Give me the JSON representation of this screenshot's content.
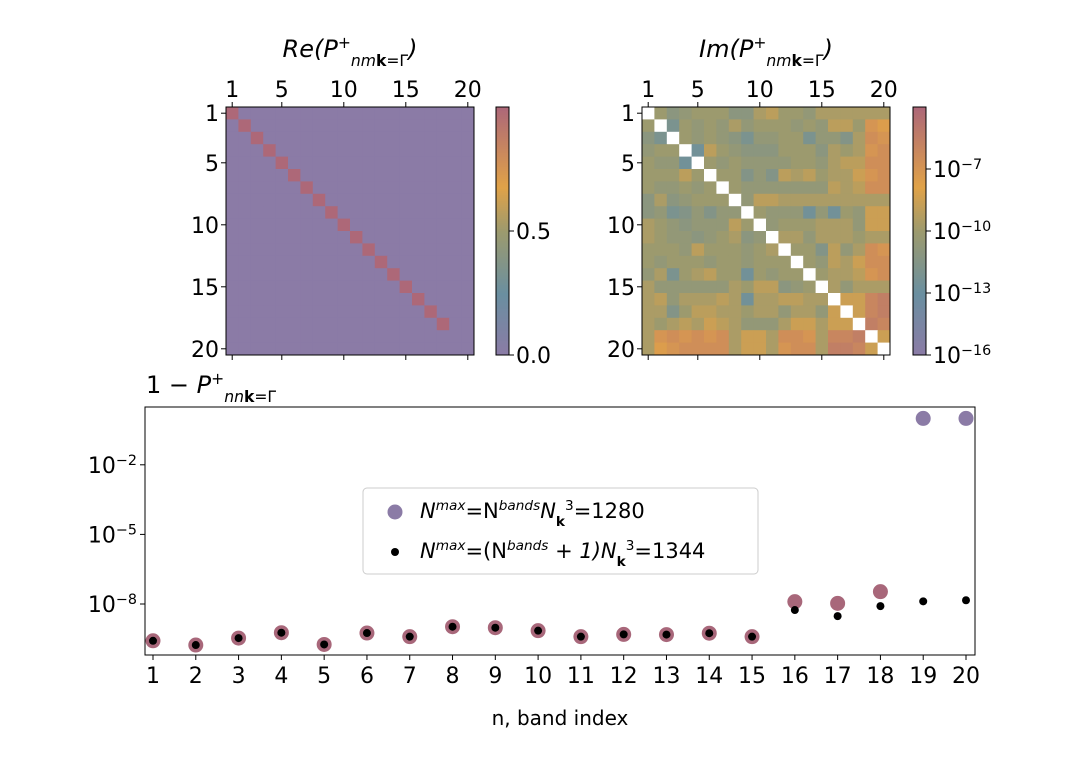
{
  "colormap": [
    "#8b7ba6",
    "#6a8fa0",
    "#9c9a6e",
    "#e0a248",
    "#ad6878"
  ],
  "chart_data": [
    {
      "type": "heatmap",
      "title": {
        "prefix": "Re(",
        "sym": "P",
        "sup": "+",
        "sub": "nm",
        "subk": "k",
        "subrest": "=Γ",
        "suffix": ")"
      },
      "x_ticks": [
        "1",
        "5",
        "10",
        "15",
        "20"
      ],
      "y_ticks": [
        "1",
        "5",
        "10",
        "15",
        "20"
      ],
      "x_axis_position": "top",
      "size": 20,
      "diagonal": [
        1,
        1,
        1,
        1,
        1,
        1,
        1,
        1,
        1,
        1,
        1,
        1,
        1,
        1,
        1,
        1,
        1,
        1,
        0,
        0
      ],
      "off_diagonal": 0,
      "colorbar": {
        "range": [
          0,
          1
        ],
        "scale": "linear",
        "ticks": [
          "0.0",
          "0.5"
        ],
        "tick_values": [
          0,
          0.5
        ]
      }
    },
    {
      "type": "heatmap",
      "title": {
        "prefix": "Im(",
        "sym": "P",
        "sup": "+",
        "sub": "nm",
        "subk": "k",
        "subrest": "=Γ",
        "suffix": ")"
      },
      "x_ticks": [
        "1",
        "5",
        "10",
        "15",
        "20"
      ],
      "y_ticks": [
        "1",
        "5",
        "10",
        "15",
        "20"
      ],
      "x_axis_position": "top",
      "diagonal_color": "#ffffff",
      "colorbar": {
        "range": [
          1e-16,
          0.0001
        ],
        "scale": "log",
        "ticks": [
          {
            "base": "10",
            "exp": "−7"
          },
          {
            "base": "10",
            "exp": "−10"
          },
          {
            "base": "10",
            "exp": "−13"
          },
          {
            "base": "10",
            "exp": "−16"
          }
        ],
        "tick_values": [
          1e-07,
          1e-10,
          1e-13,
          1e-16
        ]
      },
      "values": [
        [
          null,
          1e-10,
          1e-11,
          3e-11,
          1e-10,
          1e-10,
          1e-10,
          1e-11,
          1e-11,
          3e-10,
          1e-09,
          1e-10,
          1e-10,
          3e-11,
          3e-10,
          3e-10,
          3e-10,
          3e-10,
          3e-10,
          3e-10
        ],
        [
          1e-10,
          null,
          1e-12,
          1e-10,
          3e-11,
          1e-10,
          3e-11,
          3e-10,
          3e-11,
          1e-10,
          1e-10,
          1e-10,
          3e-11,
          1e-10,
          3e-11,
          1e-09,
          1e-09,
          1e-10,
          1e-07,
          3e-08
        ],
        [
          1e-11,
          1e-12,
          null,
          1e-10,
          3e-11,
          1e-10,
          3e-11,
          1e-11,
          1e-12,
          3e-11,
          3e-11,
          1e-10,
          1e-10,
          1e-12,
          3e-11,
          3e-11,
          3e-12,
          3e-10,
          3e-07,
          1e-07
        ],
        [
          3e-11,
          1e-10,
          1e-10,
          null,
          3e-13,
          1e-09,
          1e-10,
          3e-11,
          1e-11,
          1e-11,
          1e-11,
          1e-10,
          1e-10,
          1e-10,
          1e-11,
          3e-10,
          1e-10,
          3e-10,
          1e-07,
          3e-07
        ],
        [
          1e-10,
          3e-11,
          3e-11,
          3e-13,
          null,
          1e-10,
          3e-11,
          1e-10,
          3e-11,
          3e-11,
          3e-11,
          3e-11,
          1e-10,
          1e-10,
          3e-11,
          3e-10,
          1e-09,
          1e-09,
          3e-07,
          3e-07
        ],
        [
          1e-10,
          1e-10,
          1e-10,
          1e-09,
          1e-10,
          null,
          1e-10,
          1e-10,
          3e-12,
          3e-11,
          3e-12,
          1e-09,
          3e-10,
          1e-09,
          1e-10,
          3e-10,
          3e-10,
          3e-09,
          1e-07,
          3e-07
        ],
        [
          1e-10,
          3e-11,
          3e-11,
          1e-10,
          3e-11,
          1e-10,
          null,
          1e-10,
          3e-11,
          3e-11,
          3e-11,
          3e-11,
          3e-11,
          3e-11,
          3e-11,
          1e-09,
          3e-10,
          1e-09,
          3e-07,
          3e-07
        ],
        [
          1e-11,
          3e-10,
          1e-11,
          3e-11,
          1e-10,
          1e-10,
          1e-10,
          null,
          3e-11,
          1e-09,
          1e-09,
          3e-10,
          3e-10,
          3e-10,
          3e-10,
          3e-10,
          3e-10,
          3e-10,
          3e-10,
          3e-10
        ],
        [
          1e-11,
          3e-11,
          1e-12,
          3e-12,
          3e-11,
          3e-12,
          3e-11,
          3e-11,
          null,
          1e-10,
          3e-11,
          3e-11,
          3e-11,
          3e-13,
          3e-11,
          3e-13,
          1e-10,
          3e-11,
          3e-09,
          3e-09
        ],
        [
          3e-10,
          1e-10,
          3e-11,
          1e-11,
          3e-11,
          3e-11,
          3e-11,
          1e-09,
          1e-10,
          null,
          3e-11,
          1e-10,
          1e-10,
          1e-10,
          3e-10,
          3e-10,
          3e-10,
          3e-11,
          3e-09,
          3e-09
        ],
        [
          3e-10,
          1e-10,
          3e-11,
          3e-11,
          1e-11,
          3e-11,
          1e-10,
          3e-10,
          1e-11,
          3e-11,
          null,
          3e-10,
          3e-10,
          3e-11,
          3e-10,
          3e-10,
          3e-10,
          1e-10,
          3e-10,
          3e-10
        ],
        [
          1e-10,
          1e-10,
          1e-10,
          3e-11,
          1e-09,
          1e-10,
          1e-10,
          1e-10,
          3e-11,
          1e-10,
          3e-10,
          null,
          1e-10,
          1e-10,
          3e-12,
          1e-09,
          3e-11,
          3e-10,
          3e-07,
          1e-07
        ],
        [
          1e-10,
          3e-11,
          1e-10,
          1e-10,
          1e-10,
          3e-11,
          1e-10,
          1e-10,
          3e-11,
          1e-10,
          1e-10,
          1e-10,
          null,
          1e-10,
          3e-11,
          1e-09,
          3e-10,
          3e-09,
          3e-07,
          3e-07
        ],
        [
          3e-11,
          3e-10,
          1e-12,
          1e-10,
          3e-10,
          1e-09,
          1e-10,
          1e-10,
          3e-13,
          1e-10,
          3e-11,
          1e-10,
          1e-10,
          null,
          1e-10,
          3e-10,
          3e-10,
          1e-09,
          1e-07,
          3e-07
        ],
        [
          3e-10,
          3e-11,
          3e-11,
          3e-11,
          3e-11,
          3e-11,
          3e-11,
          3e-10,
          1e-10,
          1e-09,
          1e-09,
          1e-11,
          3e-11,
          1e-10,
          null,
          3e-10,
          3e-11,
          3e-10,
          3e-10,
          3e-10
        ],
        [
          3e-10,
          1e-09,
          3e-11,
          3e-10,
          3e-10,
          3e-10,
          1e-09,
          3e-10,
          3e-13,
          3e-10,
          3e-10,
          1e-09,
          1e-09,
          3e-10,
          3e-10,
          null,
          3e-09,
          3e-09,
          1e-06,
          3e-06
        ],
        [
          3e-10,
          3e-10,
          3e-12,
          1e-10,
          1e-09,
          1e-09,
          3e-10,
          3e-10,
          1e-10,
          3e-10,
          3e-10,
          3e-11,
          3e-10,
          3e-10,
          3e-11,
          3e-09,
          null,
          3e-09,
          1e-06,
          3e-06
        ],
        [
          3e-10,
          1e-10,
          3e-10,
          1e-09,
          3e-10,
          3e-09,
          1e-09,
          3e-10,
          3e-11,
          3e-11,
          3e-11,
          3e-10,
          3e-09,
          3e-09,
          3e-10,
          3e-09,
          3e-09,
          null,
          3e-06,
          1e-06
        ],
        [
          3e-10,
          1e-07,
          3e-07,
          1e-07,
          3e-07,
          1e-07,
          3e-07,
          3e-10,
          3e-09,
          3e-09,
          3e-10,
          3e-07,
          3e-07,
          1e-07,
          3e-10,
          1e-06,
          1e-06,
          3e-06,
          null,
          3e-09
        ],
        [
          3e-10,
          3e-08,
          1e-07,
          3e-07,
          3e-07,
          3e-07,
          3e-07,
          3e-10,
          3e-09,
          3e-09,
          3e-10,
          1e-07,
          3e-07,
          3e-07,
          3e-10,
          3e-06,
          3e-06,
          1e-06,
          3e-09,
          null
        ]
      ]
    },
    {
      "type": "scatter",
      "ylabel": {
        "prefix": "1 − ",
        "sym": "P",
        "sup": "+",
        "sub": "nn",
        "subk": "k",
        "subrest": "=Γ"
      },
      "xlabel": "n, band index",
      "yscale": "log",
      "ylim": [
        6e-11,
        3
      ],
      "xlim": [
        0.8,
        20.2
      ],
      "x_ticks": [
        "1",
        "2",
        "3",
        "4",
        "5",
        "6",
        "7",
        "8",
        "9",
        "10",
        "11",
        "12",
        "13",
        "14",
        "15",
        "16",
        "17",
        "18",
        "19",
        "20"
      ],
      "y_ticks": [
        {
          "base": "10",
          "exp": "−2"
        },
        {
          "base": "10",
          "exp": "−5"
        },
        {
          "base": "10",
          "exp": "−8"
        }
      ],
      "y_tick_values": [
        0.01,
        1e-05,
        1e-08
      ],
      "legend_position": "center",
      "x": [
        1,
        2,
        3,
        4,
        5,
        6,
        7,
        8,
        9,
        10,
        11,
        12,
        13,
        14,
        15,
        16,
        17,
        18,
        19,
        20
      ],
      "series": [
        {
          "name": {
            "a": "N",
            "a_sup": "max",
            "b": "=N",
            "b_sup": "bands",
            "c": "N",
            "c_sub": "k",
            "c_sup": "3",
            "d": "=1280"
          },
          "color": "#8b7ba6",
          "point_colors": [
            "#a8677a",
            "#a8677a",
            "#a8677a",
            "#a8677a",
            "#a8677a",
            "#a8677a",
            "#a8677a",
            "#a8677a",
            "#a8677a",
            "#a8677a",
            "#a8677a",
            "#a8677a",
            "#a8677a",
            "#a8677a",
            "#a8677a",
            "#a8677a",
            "#a8677a",
            "#a8677a",
            "#8b7ba6",
            "#8b7ba6"
          ],
          "values": [
            2.6e-10,
            1.7e-10,
            3.4e-10,
            5.8e-10,
            1.8e-10,
            5.6e-10,
            3.9e-10,
            1.05e-09,
            9.5e-10,
            7.1e-10,
            3.9e-10,
            4.9e-10,
            4.8e-10,
            5.5e-10,
            3.9e-10,
            1.26e-08,
            1.07e-08,
            3.4e-08,
            1.0,
            1.0
          ]
        },
        {
          "name": {
            "a": "N",
            "a_sup": "max",
            "b": "=(N",
            "b_sup": "bands",
            "c": " + 1)N",
            "c_sub": "k",
            "c_sup": "3",
            "d": "=1344"
          },
          "color": "#000000",
          "values": [
            2.6e-10,
            1.7e-10,
            3.4e-10,
            5.8e-10,
            1.8e-10,
            5.6e-10,
            3.9e-10,
            1.05e-09,
            9.5e-10,
            7.1e-10,
            3.9e-10,
            4.9e-10,
            4.8e-10,
            5.5e-10,
            3.9e-10,
            5.5e-09,
            3e-09,
            8.1e-09,
            1.3e-08,
            1.45e-08
          ]
        }
      ]
    }
  ]
}
